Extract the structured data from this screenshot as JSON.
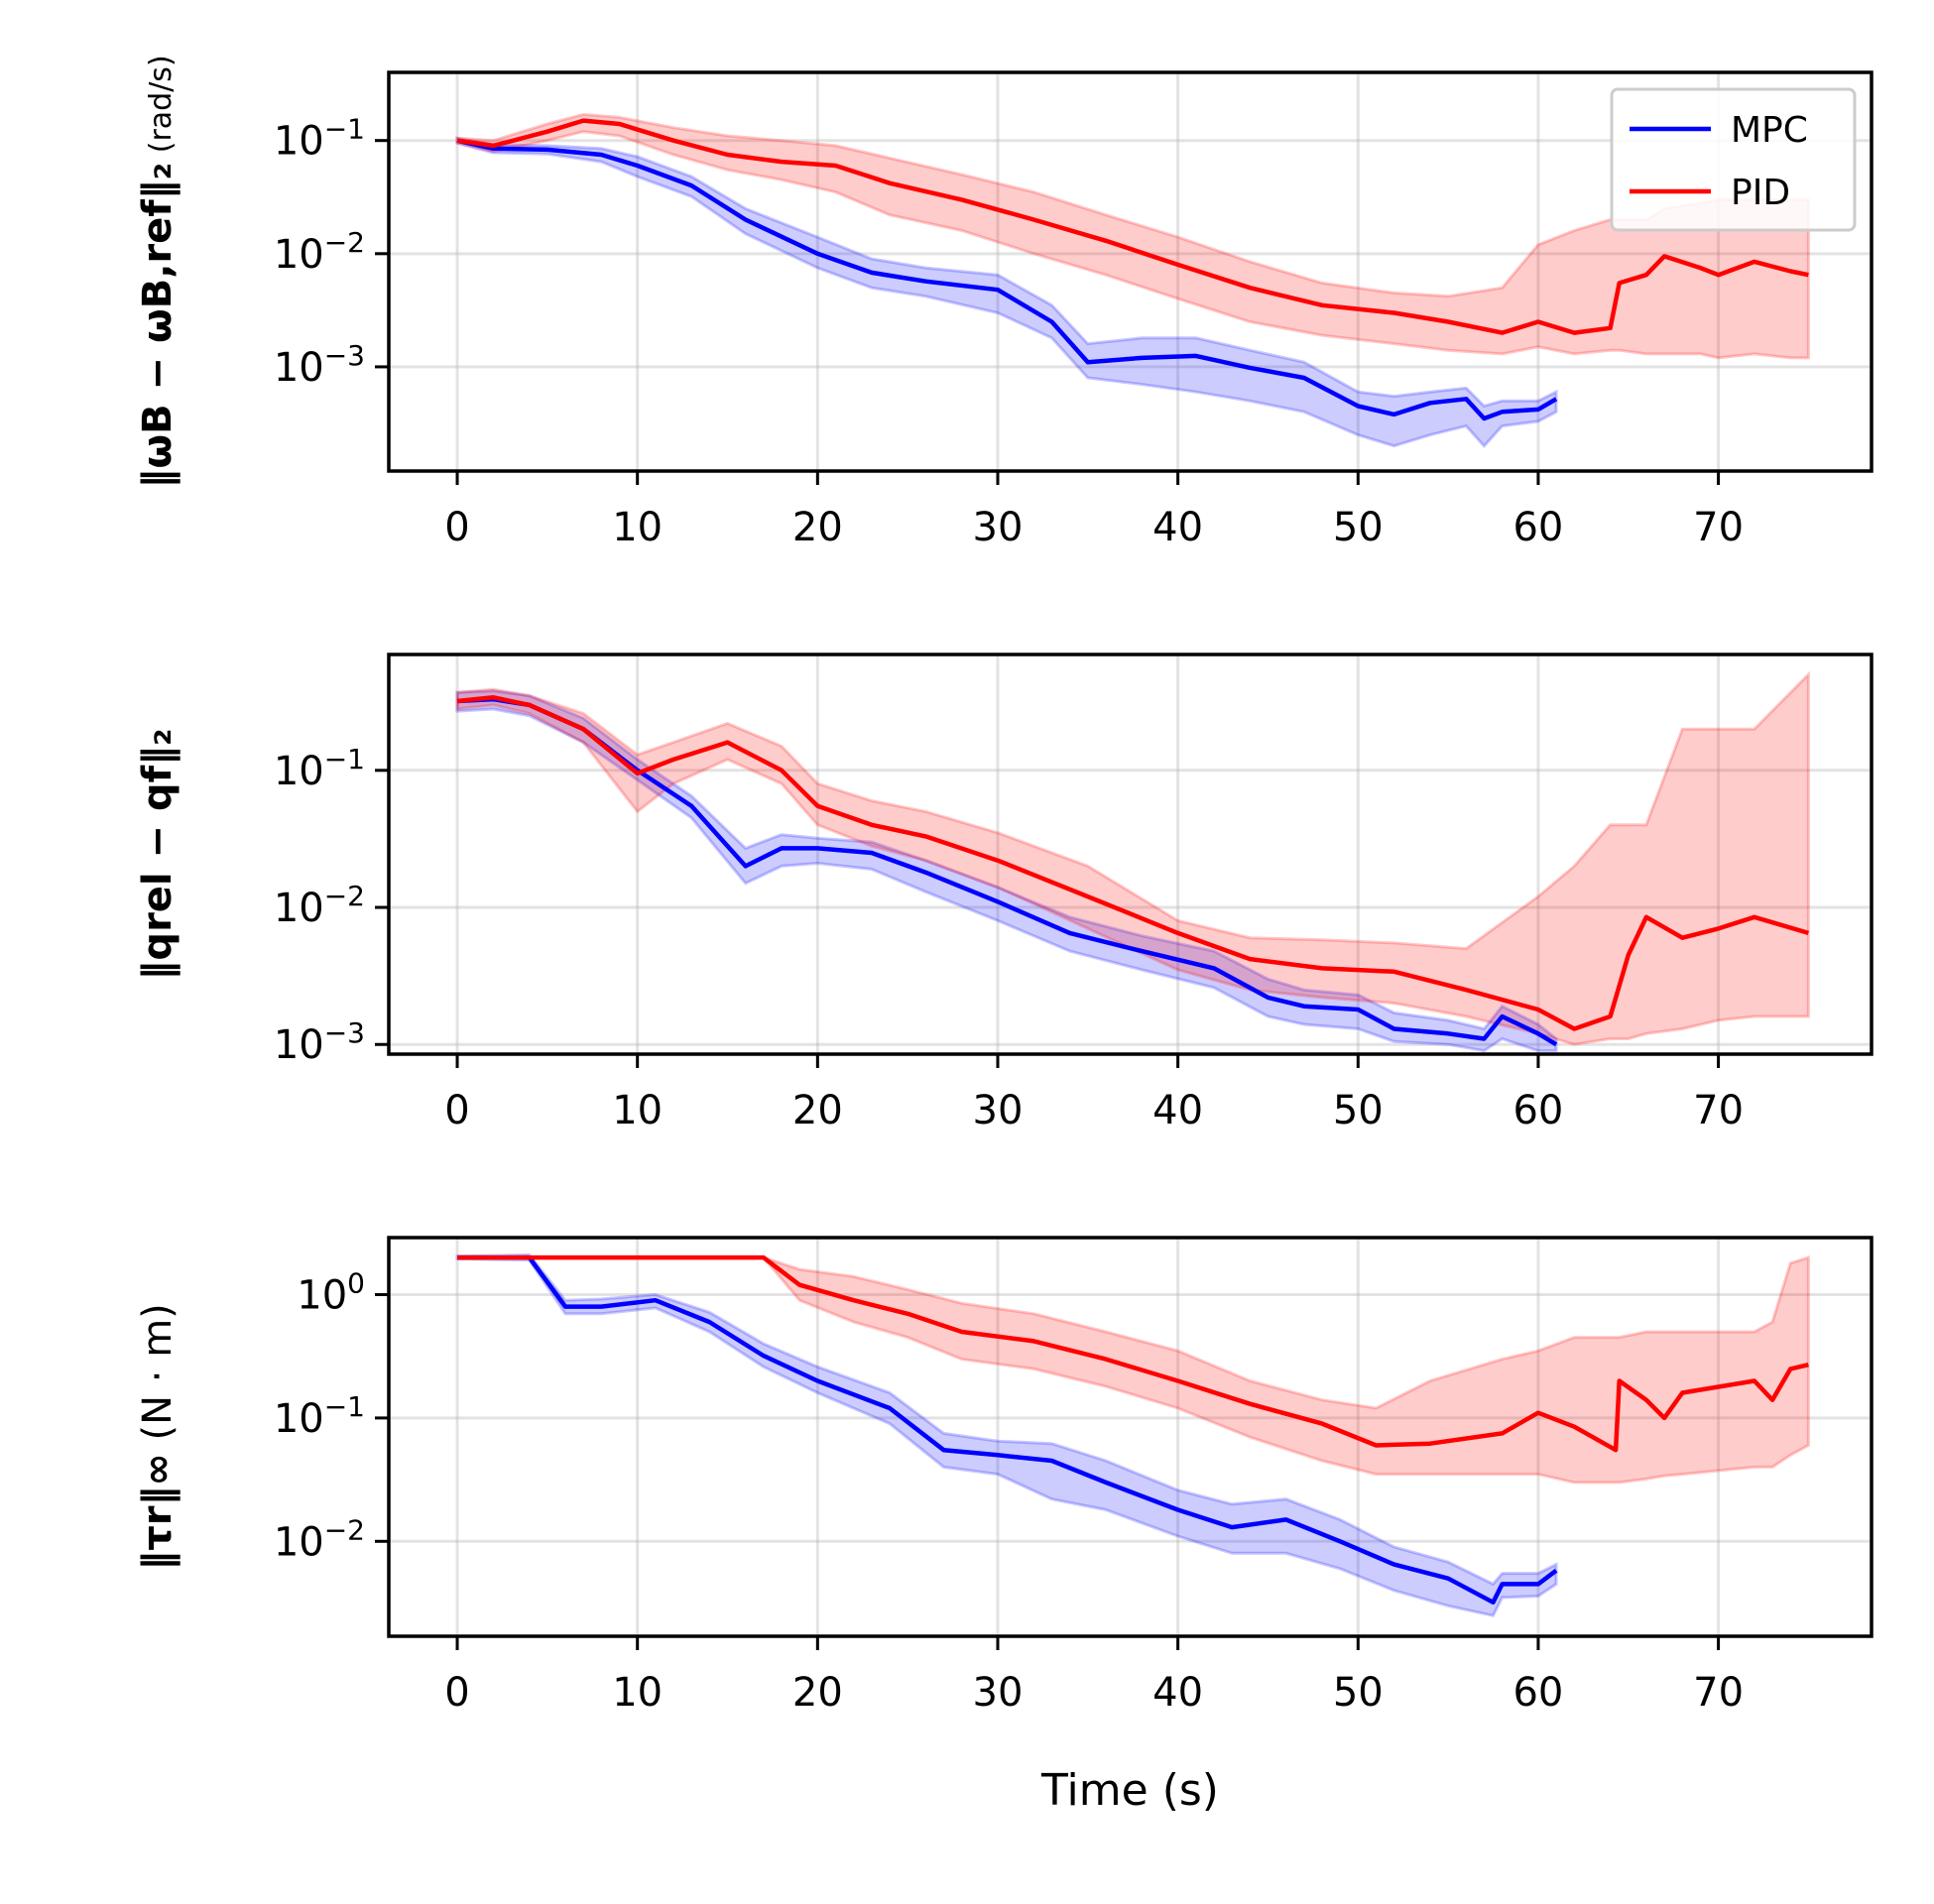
{
  "chart_data": [
    {
      "type": "line",
      "title": "",
      "ylabel": "‖ω_B − ω_B,ref‖₂ (rad/s)",
      "ylabel_parts": {
        "main": "‖ωB − ωB,ref‖₂",
        "unit_num": "rad",
        "unit_den": "s"
      },
      "xlabel": "",
      "yscale": "log",
      "xlim": [
        -3.8,
        78.5
      ],
      "ylim": [
        0.00012,
        0.4
      ],
      "xticks": [
        0,
        10,
        20,
        30,
        40,
        50,
        60,
        70
      ],
      "xtick_labels": [
        "0",
        "10",
        "20",
        "30",
        "40",
        "50",
        "60",
        "70"
      ],
      "yticks": [
        0.1,
        0.01,
        0.001
      ],
      "ytick_labels": [
        [
          "10",
          "−1"
        ],
        [
          "10",
          "−2"
        ],
        [
          "10",
          "−3"
        ]
      ],
      "grid": true,
      "legend": {
        "placement": "top-right",
        "entries": [
          "MPC",
          "PID"
        ]
      },
      "series": [
        {
          "name": "MPC",
          "color": "#0000ff",
          "x": [
            0,
            2,
            5,
            8,
            10,
            13,
            16,
            20,
            23,
            26,
            30,
            33,
            35,
            38,
            41,
            44,
            47,
            50,
            52,
            54,
            56,
            57,
            58,
            60,
            61
          ],
          "y": [
            0.1,
            0.085,
            0.083,
            0.075,
            0.06,
            0.04,
            0.02,
            0.01,
            0.0068,
            0.0057,
            0.0048,
            0.0025,
            0.0011,
            0.0012,
            0.00125,
            0.00098,
            0.0008,
            0.00045,
            0.00038,
            0.00048,
            0.00052,
            0.00035,
            0.0004,
            0.00042,
            0.00052
          ],
          "band_low": [
            0.095,
            0.078,
            0.076,
            0.065,
            0.048,
            0.032,
            0.015,
            0.0075,
            0.005,
            0.0042,
            0.003,
            0.0018,
            0.0008,
            0.0007,
            0.0006,
            0.0005,
            0.0004,
            0.00025,
            0.0002,
            0.00025,
            0.0003,
            0.0002,
            0.0003,
            0.00033,
            0.0004
          ],
          "band_high": [
            0.105,
            0.092,
            0.09,
            0.085,
            0.072,
            0.048,
            0.025,
            0.014,
            0.009,
            0.0075,
            0.0065,
            0.0035,
            0.0016,
            0.0018,
            0.0018,
            0.0014,
            0.0011,
            0.0006,
            0.00055,
            0.0006,
            0.00065,
            0.00045,
            0.0005,
            0.0005,
            0.0006
          ]
        },
        {
          "name": "PID",
          "color": "#ff0000",
          "x": [
            0,
            2,
            5,
            7,
            9,
            12,
            15,
            18,
            21,
            24,
            28,
            32,
            36,
            40,
            44,
            48,
            52,
            55,
            58,
            60,
            62,
            64,
            64.5,
            66,
            67,
            69,
            70,
            72,
            74,
            75
          ],
          "y": [
            0.1,
            0.09,
            0.12,
            0.15,
            0.14,
            0.1,
            0.075,
            0.065,
            0.06,
            0.042,
            0.03,
            0.02,
            0.013,
            0.008,
            0.005,
            0.0035,
            0.003,
            0.0025,
            0.002,
            0.0025,
            0.002,
            0.0022,
            0.0055,
            0.0065,
            0.0095,
            0.0075,
            0.0065,
            0.0085,
            0.007,
            0.0065
          ],
          "band_low": [
            0.095,
            0.08,
            0.1,
            0.12,
            0.11,
            0.075,
            0.055,
            0.045,
            0.035,
            0.022,
            0.016,
            0.01,
            0.0065,
            0.004,
            0.0025,
            0.0019,
            0.0016,
            0.0014,
            0.0013,
            0.0015,
            0.0013,
            0.0014,
            0.0014,
            0.0013,
            0.0013,
            0.0013,
            0.0012,
            0.0013,
            0.0012,
            0.0012
          ],
          "band_high": [
            0.105,
            0.1,
            0.14,
            0.17,
            0.16,
            0.13,
            0.11,
            0.1,
            0.09,
            0.07,
            0.05,
            0.035,
            0.022,
            0.014,
            0.0085,
            0.0055,
            0.0045,
            0.0042,
            0.005,
            0.012,
            0.016,
            0.02,
            0.02,
            0.02,
            0.025,
            0.028,
            0.03,
            0.03,
            0.03,
            0.03
          ]
        }
      ]
    },
    {
      "type": "line",
      "title": "",
      "ylabel": "‖q_rel − q_f‖₂",
      "ylabel_parts": {
        "main": "‖qrel − qf‖₂"
      },
      "xlabel": "",
      "yscale": "log",
      "xlim": [
        -3.8,
        78.5
      ],
      "ylim": [
        0.00085,
        0.7
      ],
      "xticks": [
        0,
        10,
        20,
        30,
        40,
        50,
        60,
        70
      ],
      "xtick_labels": [
        "0",
        "10",
        "20",
        "30",
        "40",
        "50",
        "60",
        "70"
      ],
      "yticks": [
        0.1,
        0.01,
        0.001
      ],
      "ytick_labels": [
        [
          "10",
          "−1"
        ],
        [
          "10",
          "−2"
        ],
        [
          "10",
          "−3"
        ]
      ],
      "grid": true,
      "series": [
        {
          "name": "MPC",
          "color": "#0000ff",
          "x": [
            0,
            2,
            4,
            7,
            10,
            13,
            16,
            18,
            20,
            23,
            26,
            30,
            34,
            38,
            42,
            45,
            47,
            50,
            52,
            55,
            57,
            58,
            60,
            61
          ],
          "y": [
            0.32,
            0.33,
            0.3,
            0.2,
            0.1,
            0.055,
            0.02,
            0.027,
            0.027,
            0.025,
            0.018,
            0.011,
            0.0065,
            0.0048,
            0.0036,
            0.0022,
            0.0019,
            0.0018,
            0.0013,
            0.0012,
            0.0011,
            0.0016,
            0.0012,
            0.001
          ],
          "band_low": [
            0.27,
            0.28,
            0.25,
            0.16,
            0.085,
            0.045,
            0.015,
            0.02,
            0.021,
            0.019,
            0.013,
            0.008,
            0.0048,
            0.0035,
            0.0026,
            0.0016,
            0.0014,
            0.0013,
            0.00105,
            0.001,
            0.0009,
            0.0011,
            0.0009,
            0.0009
          ],
          "band_high": [
            0.37,
            0.38,
            0.35,
            0.24,
            0.12,
            0.065,
            0.027,
            0.034,
            0.032,
            0.03,
            0.022,
            0.014,
            0.0085,
            0.0062,
            0.0048,
            0.003,
            0.0025,
            0.0023,
            0.0017,
            0.0015,
            0.0013,
            0.0019,
            0.0014,
            0.0011
          ]
        },
        {
          "name": "PID",
          "color": "#ff0000",
          "x": [
            0,
            2,
            4,
            7,
            10,
            12,
            15,
            18,
            20,
            23,
            26,
            30,
            35,
            40,
            44,
            48,
            52,
            56,
            60,
            62,
            64,
            65,
            66,
            68,
            70,
            72,
            75
          ],
          "y": [
            0.32,
            0.34,
            0.3,
            0.2,
            0.095,
            0.12,
            0.16,
            0.1,
            0.055,
            0.04,
            0.033,
            0.022,
            0.012,
            0.0065,
            0.0042,
            0.0036,
            0.0034,
            0.0025,
            0.0018,
            0.0013,
            0.0016,
            0.0045,
            0.0085,
            0.006,
            0.007,
            0.0085,
            0.0065
          ],
          "band_low": [
            0.28,
            0.3,
            0.26,
            0.16,
            0.05,
            0.08,
            0.12,
            0.08,
            0.04,
            0.028,
            0.022,
            0.014,
            0.007,
            0.0035,
            0.0025,
            0.0022,
            0.002,
            0.0016,
            0.0012,
            0.001,
            0.0011,
            0.0011,
            0.0012,
            0.0013,
            0.0015,
            0.0016,
            0.0016
          ],
          "band_high": [
            0.37,
            0.39,
            0.35,
            0.26,
            0.13,
            0.16,
            0.22,
            0.15,
            0.08,
            0.06,
            0.05,
            0.035,
            0.02,
            0.008,
            0.006,
            0.0058,
            0.0055,
            0.005,
            0.012,
            0.02,
            0.04,
            0.04,
            0.04,
            0.2,
            0.2,
            0.2,
            0.5
          ]
        }
      ]
    },
    {
      "type": "line",
      "title": "",
      "ylabel": "‖τ_r‖∞ (N · m)",
      "ylabel_parts": {
        "main": "‖τr‖∞",
        "unit": "(N · m)"
      },
      "xlabel": "Time (s)",
      "yscale": "log",
      "xlim": [
        -3.8,
        78.5
      ],
      "ylim": [
        0.0017,
        2.9
      ],
      "xticks": [
        0,
        10,
        20,
        30,
        40,
        50,
        60,
        70
      ],
      "xtick_labels": [
        "0",
        "10",
        "20",
        "30",
        "40",
        "50",
        "60",
        "70"
      ],
      "yticks": [
        1,
        0.1,
        0.01
      ],
      "ytick_labels": [
        [
          "10",
          "0"
        ],
        [
          "10",
          "−1"
        ],
        [
          "10",
          "−2"
        ]
      ],
      "grid": true,
      "series": [
        {
          "name": "MPC",
          "color": "#0000ff",
          "x": [
            0,
            4,
            6,
            8,
            11,
            14,
            17,
            20,
            24,
            27,
            30,
            33,
            36,
            40,
            43,
            46,
            49,
            52,
            55,
            57.5,
            58,
            60,
            61
          ],
          "y": [
            2,
            2,
            0.8,
            0.8,
            0.9,
            0.6,
            0.32,
            0.2,
            0.12,
            0.055,
            0.05,
            0.045,
            0.03,
            0.018,
            0.013,
            0.015,
            0.01,
            0.0065,
            0.005,
            0.0032,
            0.0045,
            0.0045,
            0.0058
          ],
          "band_low": [
            1.95,
            1.9,
            0.7,
            0.7,
            0.78,
            0.5,
            0.26,
            0.16,
            0.09,
            0.04,
            0.035,
            0.022,
            0.018,
            0.011,
            0.008,
            0.008,
            0.006,
            0.004,
            0.003,
            0.0025,
            0.0035,
            0.0036,
            0.0045
          ],
          "band_high": [
            2.05,
            2.1,
            0.9,
            0.92,
            1.0,
            0.72,
            0.4,
            0.26,
            0.16,
            0.075,
            0.065,
            0.062,
            0.045,
            0.026,
            0.02,
            0.022,
            0.015,
            0.009,
            0.0068,
            0.0045,
            0.0055,
            0.0055,
            0.0065
          ]
        },
        {
          "name": "PID",
          "color": "#ff0000",
          "x": [
            0,
            17,
            19,
            22,
            25,
            28,
            32,
            36,
            40,
            44,
            48,
            51,
            54,
            58,
            60,
            62,
            64.3,
            64.5,
            66,
            67,
            68,
            72,
            73,
            74,
            75
          ],
          "y": [
            2,
            2,
            1.2,
            0.9,
            0.7,
            0.5,
            0.42,
            0.3,
            0.2,
            0.13,
            0.09,
            0.06,
            0.062,
            0.075,
            0.11,
            0.085,
            0.055,
            0.2,
            0.14,
            0.1,
            0.16,
            0.2,
            0.14,
            0.25,
            0.27
          ],
          "band_low": [
            2,
            2,
            0.9,
            0.6,
            0.45,
            0.3,
            0.25,
            0.18,
            0.12,
            0.07,
            0.045,
            0.035,
            0.035,
            0.035,
            0.035,
            0.03,
            0.03,
            0.03,
            0.032,
            0.034,
            0.035,
            0.04,
            0.04,
            0.05,
            0.06
          ],
          "band_high": [
            2,
            2,
            1.6,
            1.4,
            1.1,
            0.85,
            0.7,
            0.5,
            0.35,
            0.2,
            0.14,
            0.12,
            0.2,
            0.3,
            0.35,
            0.45,
            0.45,
            0.45,
            0.5,
            0.5,
            0.5,
            0.5,
            0.6,
            1.8,
            2.0
          ]
        }
      ]
    }
  ]
}
